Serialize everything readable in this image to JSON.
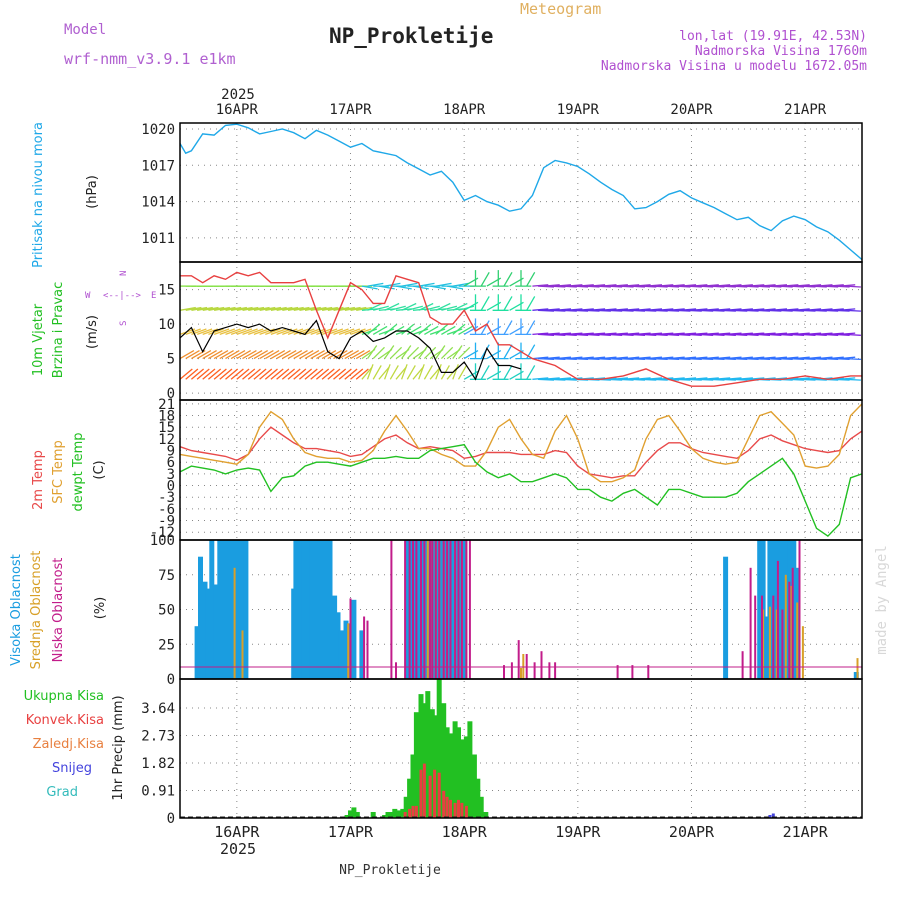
{
  "header": {
    "model_label": "Model",
    "model_value": "wrf-nmm_v3.9.1 e1km",
    "title": "NP_Prokletije",
    "subtitle": "Meteogram",
    "coords": "lon,lat (19.91E, 42.53N)",
    "altitude": "Nadmorska Visina 1760m",
    "model_altitude": "Nadmorska Visina u modelu 1672.05m",
    "footer_title": "NP_Prokletije",
    "watermark": "made by Angel"
  },
  "colors": {
    "pressure": "#1fa8e8",
    "temp2m": "#e84a4a",
    "sfc": "#e0a030",
    "dewpt": "#22c022",
    "high_cloud": "#1a9de0",
    "mid_cloud": "#d8a028",
    "low_cloud": "#c21c8a",
    "precip": "#22c022",
    "conv": "#e84040",
    "snow": "#4444dd",
    "grad": "#33bbbb"
  },
  "chart_data": [
    {
      "type": "line",
      "panel": "pressure",
      "ylabel_left": "Pritisak na nivou mora",
      "ylabel_unit": "(hPa)",
      "yticks": [
        "1020",
        "1017",
        "1014",
        "1011"
      ],
      "ylim": [
        1009,
        1020.5
      ],
      "xlim_days": [
        15.5,
        21.5
      ],
      "x_day": [
        15.5,
        15.55,
        15.6,
        15.7,
        15.8,
        15.9,
        16.0,
        16.1,
        16.2,
        16.3,
        16.4,
        16.5,
        16.6,
        16.7,
        16.8,
        16.9,
        17.0,
        17.1,
        17.2,
        17.3,
        17.4,
        17.5,
        17.6,
        17.7,
        17.8,
        17.9,
        18.0,
        18.1,
        18.2,
        18.3,
        18.4,
        18.5,
        18.6,
        18.7,
        18.8,
        18.9,
        19.0,
        19.1,
        19.2,
        19.3,
        19.4,
        19.5,
        19.6,
        19.7,
        19.8,
        19.9,
        20.0,
        20.1,
        20.2,
        20.3,
        20.4,
        20.5,
        20.6,
        20.7,
        20.8,
        20.9,
        21.0,
        21.1,
        21.2,
        21.3,
        21.4,
        21.5
      ],
      "values": [
        1018.8,
        1018,
        1018.2,
        1019.6,
        1019.5,
        1020.3,
        1020.4,
        1020.1,
        1019.6,
        1019.8,
        1020.0,
        1019.7,
        1019.2,
        1019.9,
        1019.5,
        1019.0,
        1018.5,
        1018.8,
        1018.2,
        1018.0,
        1017.8,
        1017.2,
        1016.7,
        1016.2,
        1016.5,
        1015.6,
        1014.1,
        1014.5,
        1014.0,
        1013.7,
        1013.2,
        1013.4,
        1014.5,
        1016.8,
        1017.4,
        1017.2,
        1016.9,
        1016.3,
        1015.6,
        1015.0,
        1014.5,
        1013.4,
        1013.5,
        1014.0,
        1014.6,
        1014.9,
        1014.3,
        1013.9,
        1013.5,
        1013.0,
        1012.5,
        1012.7,
        1012.0,
        1011.6,
        1012.4,
        1012.8,
        1012.5,
        1011.9,
        1011.5,
        1010.8,
        1010.0,
        1009.2
      ]
    },
    {
      "type": "line",
      "panel": "wind",
      "ylabel_left": "10m Vjetar",
      "ylabel_left2": "Brzina i Pravac",
      "ylabel_unit": "(m/s)",
      "compass": {
        "n": "N",
        "w": "W",
        "e": "E",
        "s": "S",
        "arrow": "<--|-->"
      },
      "yticks": [
        "15",
        "10",
        "5",
        "0"
      ],
      "ylim": [
        -1,
        19
      ],
      "xlim_days": [
        15.5,
        21.5
      ],
      "series": [
        {
          "role": "speed_black",
          "x_day": [
            15.5,
            15.6,
            15.7,
            15.8,
            15.9,
            16.0,
            16.1,
            16.2,
            16.3,
            16.4,
            16.5,
            16.6,
            16.7,
            16.8,
            16.9,
            17.0,
            17.1,
            17.2,
            17.3,
            17.4,
            17.5,
            17.6,
            17.7,
            17.8,
            17.9,
            18.0,
            18.1,
            18.2,
            18.3,
            18.4,
            18.5
          ],
          "values": [
            8,
            9.5,
            6,
            9,
            9.5,
            10,
            9.5,
            10,
            9,
            9.5,
            9,
            8.5,
            10.5,
            6,
            5,
            8,
            9,
            7.5,
            8,
            9,
            9,
            8,
            6.5,
            3,
            3,
            4.5,
            2,
            6.5,
            4,
            4,
            3.5
          ]
        },
        {
          "role": "gust_red",
          "x_day": [
            15.5,
            15.6,
            15.7,
            15.8,
            15.9,
            16.0,
            16.1,
            16.2,
            16.3,
            16.4,
            16.5,
            16.6,
            16.7,
            16.8,
            16.9,
            17.0,
            17.1,
            17.2,
            17.3,
            17.4,
            17.5,
            17.6,
            17.7,
            17.8,
            17.9,
            18.0,
            18.1,
            18.2,
            18.3,
            18.4,
            18.5,
            18.6,
            18.8,
            19.0,
            19.2,
            19.4,
            19.6,
            19.8,
            20.0,
            20.2,
            20.4,
            20.6,
            20.8,
            21.0,
            21.2,
            21.4,
            21.5
          ],
          "values": [
            17,
            17,
            16,
            17,
            16.5,
            17.5,
            17,
            17.5,
            16,
            16,
            16,
            16.5,
            12,
            8,
            12,
            16,
            15,
            13,
            13,
            17,
            16.5,
            16,
            11,
            10,
            10,
            12,
            9,
            10,
            7,
            7,
            6,
            5,
            4,
            2,
            2,
            2.5,
            3.5,
            2,
            1,
            1,
            1.5,
            2,
            2,
            2.5,
            2,
            2.5,
            2.5
          ]
        }
      ]
    },
    {
      "type": "line",
      "panel": "temperature",
      "ylabel_left": "2m Temp",
      "ylabel_left2": "SFC Temp",
      "ylabel_left3": "dewpt Temp",
      "ylabel_unit": "(C)",
      "yticks": [
        "21",
        "18",
        "15",
        "12",
        "9",
        "6",
        "3",
        "0",
        "-3",
        "-6",
        "-9",
        "-12"
      ],
      "ylim": [
        -14,
        22
      ],
      "xlim_days": [
        15.5,
        21.5
      ],
      "x_day": [
        15.5,
        15.6,
        15.7,
        15.8,
        15.9,
        16.0,
        16.1,
        16.2,
        16.3,
        16.4,
        16.5,
        16.6,
        16.7,
        16.8,
        16.9,
        17.0,
        17.1,
        17.2,
        17.3,
        17.4,
        17.5,
        17.6,
        17.7,
        17.8,
        17.9,
        18.0,
        18.1,
        18.2,
        18.3,
        18.4,
        18.5,
        18.6,
        18.7,
        18.8,
        18.9,
        19.0,
        19.1,
        19.2,
        19.3,
        19.4,
        19.5,
        19.6,
        19.7,
        19.8,
        19.9,
        20.0,
        20.1,
        20.2,
        20.3,
        20.4,
        20.5,
        20.6,
        20.7,
        20.8,
        20.9,
        21.0,
        21.1,
        21.2,
        21.3,
        21.4,
        21.5
      ],
      "series": [
        {
          "name": "2m Temp",
          "values": [
            10,
            9,
            8.5,
            8,
            7.5,
            6.5,
            8,
            12,
            15,
            13,
            11,
            9.5,
            9.5,
            9,
            8.5,
            7.5,
            8,
            10,
            12,
            13,
            11,
            9.5,
            10,
            9.5,
            9,
            7,
            7.5,
            8.5,
            8.5,
            8.5,
            8,
            8,
            8,
            9,
            8.5,
            5,
            3,
            2.5,
            2,
            2.5,
            2.5,
            6,
            9,
            11,
            11,
            9.5,
            8.5,
            8,
            7.5,
            7,
            9,
            12,
            13,
            11.5,
            10.5,
            9.5,
            9,
            8.5,
            9,
            12,
            14
          ]
        },
        {
          "name": "SFC Temp",
          "values": [
            8,
            7.5,
            7,
            6.5,
            6,
            5.5,
            8,
            15,
            19,
            17,
            12,
            8.5,
            7.5,
            7,
            7,
            6,
            6.5,
            9,
            14,
            18,
            14,
            9.5,
            9.5,
            8,
            7,
            5,
            5,
            9,
            15,
            17,
            12,
            8,
            7,
            14,
            18,
            12,
            3,
            1,
            1,
            2,
            4,
            12,
            17,
            18,
            14,
            9.5,
            7,
            6,
            5.5,
            6,
            12,
            18,
            19,
            16,
            13,
            5,
            4.5,
            5,
            8,
            18,
            21
          ]
        },
        {
          "name": "dewpt Temp",
          "values": [
            3.5,
            5,
            4.5,
            4,
            3,
            4,
            4.5,
            4,
            -1.5,
            2,
            2.5,
            5,
            6,
            6,
            5.5,
            5,
            6,
            7,
            7,
            7.5,
            7,
            7,
            9,
            9.5,
            10,
            10.5,
            6,
            3.5,
            2,
            3,
            1,
            1,
            2,
            3,
            2,
            -1,
            -1,
            -3,
            -4,
            -2,
            -1,
            -3,
            -5,
            -1,
            -1,
            -2,
            -3,
            -3,
            -3,
            -2,
            1,
            3,
            5,
            7,
            3,
            -4,
            -11,
            -13,
            -10,
            2,
            3
          ]
        }
      ]
    },
    {
      "type": "bar",
      "panel": "clouds",
      "ylabel_left": "Visoka Oblacnost",
      "ylabel_left2": "Srednja Oblacnost",
      "ylabel_left3": "Niska Oblacnost",
      "ylabel_unit": "(%)",
      "yticks": [
        "100",
        "75",
        "50",
        "25",
        "0"
      ],
      "ylim": [
        0,
        100
      ],
      "xlim_days": [
        15.5,
        21.5
      ],
      "series": [
        {
          "name": "Visoka Oblacnost",
          "x_day": [
            15.65,
            15.68,
            15.72,
            15.75,
            15.78,
            15.82,
            15.85,
            15.88,
            15.92,
            15.95,
            15.98,
            16.02,
            16.05,
            16.08,
            16.5,
            16.52,
            16.56,
            16.59,
            16.62,
            16.66,
            16.69,
            16.72,
            16.76,
            16.79,
            16.82,
            16.86,
            16.89,
            16.92,
            16.96,
            16.99,
            17.03,
            17.1,
            17.5,
            17.53,
            17.56,
            17.59,
            17.62,
            17.66,
            17.69,
            17.72,
            17.76,
            17.79,
            17.82,
            17.86,
            17.89,
            17.92,
            17.96,
            17.99,
            20.3,
            20.6,
            20.63,
            20.66,
            20.69,
            20.72,
            20.75,
            20.78,
            20.81,
            20.84,
            20.87,
            20.9,
            20.93,
            21.45
          ],
          "values": [
            38,
            88,
            70,
            65,
            100,
            68,
            100,
            100,
            100,
            100,
            100,
            100,
            100,
            100,
            65,
            100,
            100,
            100,
            100,
            100,
            100,
            100,
            100,
            100,
            100,
            60,
            48,
            35,
            42,
            40,
            57,
            35,
            100,
            100,
            100,
            100,
            100,
            100,
            100,
            100,
            100,
            100,
            100,
            100,
            100,
            100,
            100,
            100,
            88,
            100,
            100,
            45,
            100,
            100,
            100,
            100,
            100,
            100,
            100,
            100,
            80,
            5
          ]
        },
        {
          "name": "Srednja Oblacnost",
          "x_day": [
            15.98,
            16.05,
            16.98,
            17.68,
            17.72,
            17.75,
            17.78,
            17.82,
            17.85,
            17.88,
            17.92,
            17.95,
            17.98,
            18.02,
            18.5,
            18.52,
            20.63,
            20.69,
            20.75,
            20.83,
            20.88,
            20.93,
            20.98,
            21.46
          ],
          "values": [
            80,
            35,
            40,
            100,
            100,
            100,
            100,
            100,
            100,
            100,
            100,
            100,
            100,
            100,
            8,
            18,
            50,
            52,
            50,
            75,
            67,
            55,
            38,
            15
          ]
        },
        {
          "name": "Niska Oblacnost",
          "x_day": [
            17.0,
            17.12,
            17.15,
            17.36,
            17.4,
            17.48,
            17.52,
            17.55,
            17.58,
            17.62,
            17.65,
            17.7,
            17.72,
            17.75,
            17.78,
            17.82,
            17.85,
            17.88,
            17.92,
            17.95,
            17.98,
            18.02,
            18.05,
            18.35,
            18.42,
            18.48,
            18.55,
            18.62,
            18.68,
            18.75,
            18.8,
            19.35,
            19.48,
            19.62,
            20.45,
            20.52,
            20.56,
            20.62,
            20.72,
            20.76,
            20.8,
            20.86,
            20.89,
            20.95
          ],
          "values": [
            58,
            45,
            42,
            100,
            12,
            100,
            100,
            100,
            100,
            100,
            100,
            100,
            100,
            100,
            100,
            100,
            100,
            100,
            100,
            100,
            100,
            100,
            100,
            10,
            12,
            28,
            18,
            12,
            20,
            12,
            12,
            10,
            10,
            10,
            20,
            80,
            60,
            60,
            60,
            85,
            50,
            70,
            80,
            100
          ]
        }
      ]
    },
    {
      "type": "bar",
      "panel": "precipitation",
      "legend": [
        "Ukupna Kisa",
        "Konvek.Kisa",
        "Zaledj.Kisa",
        "Snijeg",
        "Grad"
      ],
      "ylabel_unit": "1hr Precip (mm)",
      "yticks": [
        "3.64",
        "2.73",
        "1.82",
        "0.91",
        "0"
      ],
      "ylim": [
        0,
        4.6
      ],
      "xlim_days": [
        15.5,
        21.5
      ],
      "series": [
        {
          "name": "Ukupna Kisa",
          "x_day": [
            16.97,
            17.0,
            17.03,
            17.06,
            17.2,
            17.3,
            17.33,
            17.36,
            17.39,
            17.42,
            17.46,
            17.49,
            17.52,
            17.55,
            17.58,
            17.62,
            17.65,
            17.68,
            17.72,
            17.75,
            17.78,
            17.82,
            17.85,
            17.88,
            17.92,
            17.95,
            17.98,
            18.02,
            18.05,
            18.09,
            18.12,
            18.15,
            18.19
          ],
          "values": [
            0.1,
            0.25,
            0.35,
            0.2,
            0.2,
            0.1,
            0.2,
            0.2,
            0.3,
            0.25,
            0.3,
            0.7,
            1.3,
            2.1,
            3.5,
            4.1,
            3.8,
            4.2,
            3.6,
            3.4,
            4.6,
            3.8,
            3.0,
            2.8,
            3.2,
            3.0,
            2.6,
            2.7,
            3.2,
            2.1,
            1.3,
            0.7,
            0.2
          ]
        },
        {
          "name": "Konvek.Kisa",
          "x_day": [
            17.48,
            17.52,
            17.55,
            17.58,
            17.62,
            17.65,
            17.7,
            17.74,
            17.78,
            17.82,
            17.85,
            17.88,
            17.92,
            17.95,
            17.98,
            18.02
          ],
          "values": [
            0.2,
            0.3,
            0.4,
            0.4,
            1.6,
            1.8,
            1.4,
            1.6,
            1.5,
            0.9,
            0.7,
            0.6,
            0.5,
            0.6,
            0.5,
            0.4
          ]
        },
        {
          "name": "Snijeg",
          "x_day": [
            20.69,
            20.72
          ],
          "values": [
            0.1,
            0.15
          ]
        }
      ]
    }
  ],
  "x_axis": {
    "top_year": "2025",
    "bottom_year": "2025",
    "day_labels": [
      "16APR",
      "17APR",
      "18APR",
      "19APR",
      "20APR",
      "21APR"
    ],
    "day_positions": [
      16,
      17,
      18,
      19,
      20,
      21
    ]
  }
}
